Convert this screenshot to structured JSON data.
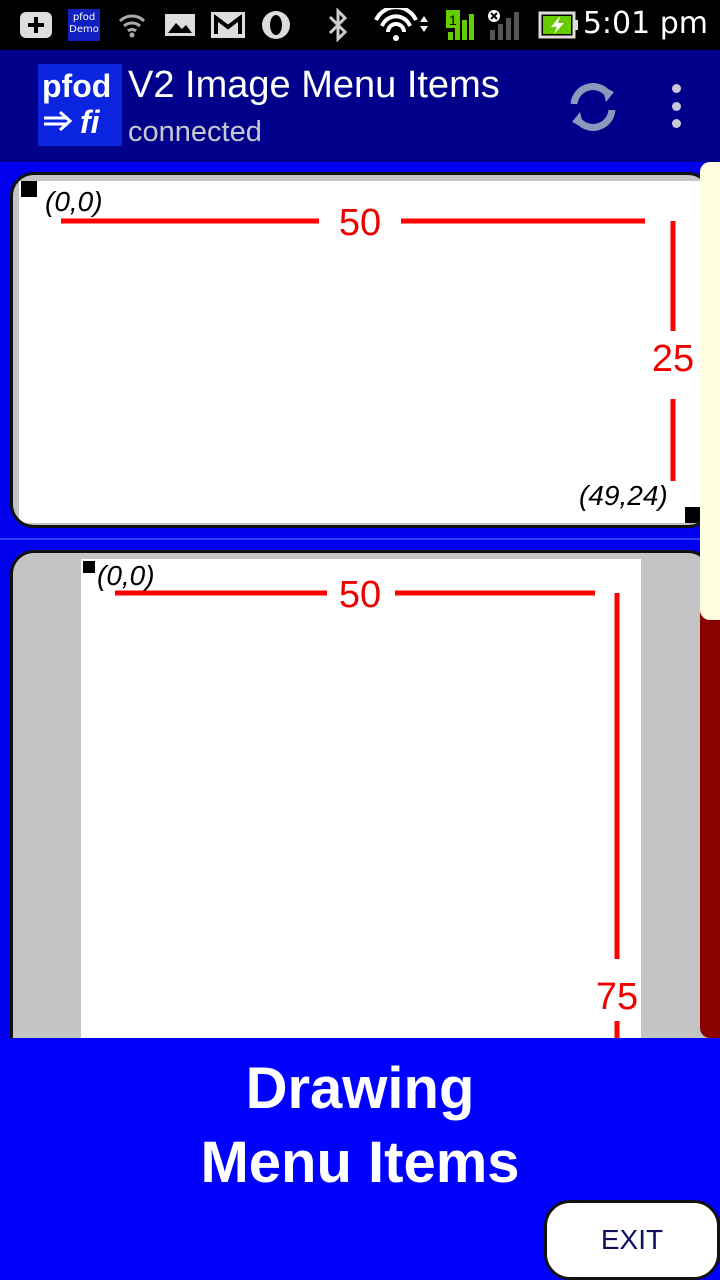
{
  "status_bar": {
    "time": "5:01 pm",
    "mini_app_icon_line1": "pfod",
    "mini_app_icon_line2": "Demo",
    "icons": [
      "plus-notification-icon",
      "pfod-demo-icon",
      "wifi-weak-icon",
      "image-icon",
      "gmail-icon",
      "opera-icon",
      "bluetooth-icon",
      "wifi-icon",
      "signal-icon",
      "battery-charging-icon"
    ]
  },
  "app_bar": {
    "logo_line1": "pfod",
    "logo_line2": "fi",
    "title": "V2 Image Menu Items",
    "subtitle": "connected",
    "refresh_icon": "refresh-icon",
    "overflow_icon": "overflow-menu-icon"
  },
  "menu_items": [
    {
      "origin_label": "(0,0)",
      "corner_label": "(49,24)",
      "width_label": "50",
      "height_label": "25"
    },
    {
      "origin_label": "(0,0)",
      "width_label": "50",
      "height_label": "75"
    }
  ],
  "prompt": {
    "line1": "Drawing",
    "line2": "Menu Items"
  },
  "exit_label": "EXIT",
  "colors": {
    "status_bar": "#000000",
    "app_bar": "#00008b",
    "background": "#0000ee",
    "drawing_line": "#ff0000",
    "scroll_thumb": "#fffde0",
    "scroll_track": "#8b0000"
  }
}
